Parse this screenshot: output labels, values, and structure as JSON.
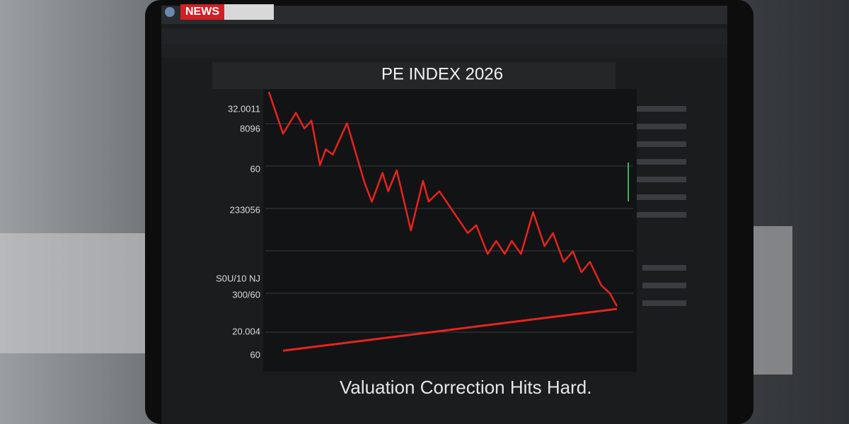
{
  "browser": {
    "tab": "NEWS"
  },
  "chart_data": {
    "type": "line",
    "title": "PE INDEX 2026",
    "caption": "Valuation Correction Hits Hard.",
    "y_labels": [
      "32.0011",
      "8096",
      "60",
      "233056",
      "S0U/10 NJ",
      "300/60",
      "20.004",
      "60"
    ],
    "x": [
      0,
      2,
      3.8,
      5,
      6,
      7.2,
      8,
      9,
      11,
      13.5,
      14.5,
      16,
      16.8,
      18,
      20,
      21.7,
      22.5,
      24,
      26,
      28,
      29.2,
      30.8,
      32,
      33.2,
      34.2,
      35.5,
      37.2,
      38.8,
      40,
      41.5,
      42.8,
      44,
      45.2,
      46.8,
      48,
      49
    ],
    "series": [
      {
        "color": "#e8231f",
        "values": [
          100,
          84,
          92,
          86,
          89,
          72,
          78,
          76,
          88,
          65,
          58,
          69,
          62,
          70,
          47,
          66,
          58,
          62,
          54,
          46,
          49,
          38,
          43,
          38,
          43,
          38,
          54,
          41,
          46,
          35,
          39,
          31,
          35,
          26,
          23,
          18
        ]
      }
    ],
    "trend": {
      "color": "#e8231f",
      "x": [
        2,
        49
      ],
      "values": [
        1,
        17
      ]
    },
    "xlim": [
      0,
      49
    ],
    "ylim": [
      0,
      100
    ]
  }
}
